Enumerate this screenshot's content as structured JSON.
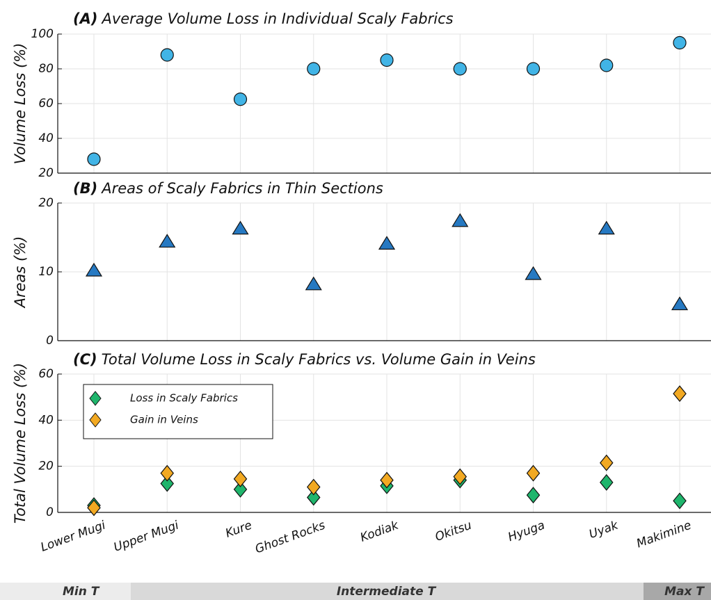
{
  "chart_data": [
    {
      "type": "scatter",
      "label": "(A)",
      "title": "Average Volume Loss in Individual Scaly Fabrics",
      "ylabel": "Volume Loss (%)",
      "series": [
        {
          "name": "Average Volume Loss",
          "color": "#41b4e6",
          "marker": "circle",
          "values": [
            28,
            88,
            62.5,
            80,
            85,
            80,
            80,
            82,
            95
          ]
        }
      ],
      "ylim": [
        20,
        100
      ],
      "yticks": [
        20,
        40,
        60,
        80,
        100
      ],
      "grid": true,
      "legend": false
    },
    {
      "type": "scatter",
      "label": "(B)",
      "title": "Areas of Scaly Fabrics in Thin Sections",
      "ylabel": "Areas (%)",
      "series": [
        {
          "name": "Areas",
          "color": "#2679c2",
          "marker": "triangle",
          "values": [
            10.2,
            14.4,
            16.3,
            8.2,
            14.1,
            17.4,
            9.7,
            16.3,
            5.3
          ]
        }
      ],
      "ylim": [
        0,
        20
      ],
      "yticks": [
        0,
        10,
        20
      ],
      "grid": true,
      "legend": false
    },
    {
      "type": "scatter",
      "label": "(C)",
      "title": "Total Volume Loss in Scaly Fabrics vs. Volume Gain in Veins",
      "ylabel": "Total Volume Loss (%)",
      "categories": [
        "Lower Mugi",
        "Upper Mugi",
        "Kure",
        "Ghost Rocks",
        "Kodiak",
        "Okitsu",
        "Hyuga",
        "Uyak",
        "Makimine"
      ],
      "series": [
        {
          "name": "Loss in Scaly Fabrics",
          "color": "#1fb56c",
          "marker": "diamond",
          "values": [
            3,
            12.5,
            10,
            6.5,
            11.5,
            14,
            7.5,
            13,
            5
          ]
        },
        {
          "name": "Gain in Veins",
          "color": "#f2a922",
          "marker": "diamond",
          "values": [
            2,
            17,
            14.5,
            11,
            14,
            15.5,
            17,
            21.5,
            51.5
          ]
        }
      ],
      "ylim": [
        0,
        60
      ],
      "yticks": [
        0,
        20,
        40,
        60
      ],
      "grid": true,
      "legend": "upper left"
    }
  ],
  "temperature_bar": [
    {
      "label": "Min T"
    },
    {
      "label": "Intermediate T"
    },
    {
      "label": "Max T"
    }
  ]
}
